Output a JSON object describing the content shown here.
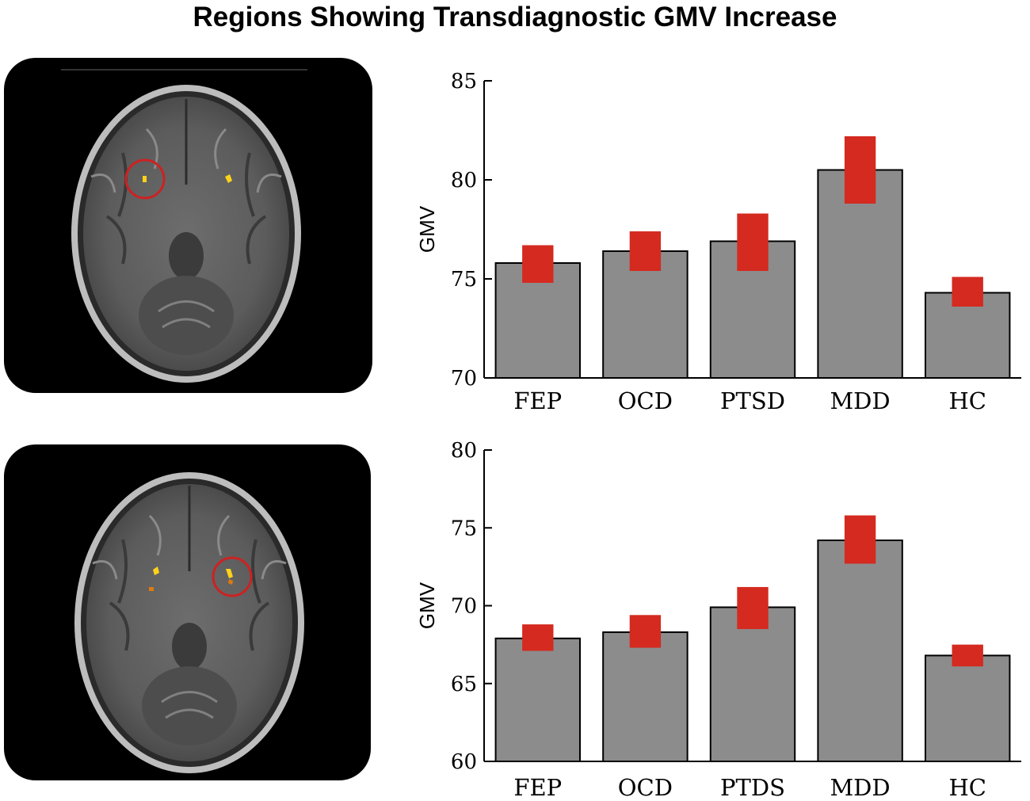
{
  "title": "Regions Showing Transdiagnostic GMV Increase",
  "colors": {
    "bar": "#8c8c8c",
    "error": "#d42a20",
    "circle": "#cc2222",
    "blob": "#ffd21a"
  },
  "panels": [
    {
      "name": "upper-brain-slice",
      "circled_side": "left"
    },
    {
      "name": "lower-brain-slice",
      "circled_side": "right"
    }
  ],
  "chart_data": [
    {
      "type": "bar",
      "title": "",
      "xlabel": "",
      "ylabel": "GMV",
      "ylim": [
        70,
        85
      ],
      "yticks": [
        70,
        75,
        80,
        85
      ],
      "categories": [
        "FEP",
        "OCD",
        "PTSD",
        "MDD",
        "HC"
      ],
      "values": [
        75.8,
        76.4,
        76.9,
        80.5,
        74.3
      ],
      "error_low": [
        74.8,
        75.4,
        75.4,
        78.8,
        73.6
      ],
      "error_high": [
        76.7,
        77.4,
        78.3,
        82.2,
        75.1
      ]
    },
    {
      "type": "bar",
      "title": "",
      "xlabel": "",
      "ylabel": "GMV",
      "ylim": [
        60,
        80
      ],
      "yticks": [
        60,
        65,
        70,
        75,
        80
      ],
      "categories": [
        "FEP",
        "OCD",
        "PTDS",
        "MDD",
        "HC"
      ],
      "values": [
        67.9,
        68.3,
        69.9,
        74.2,
        66.8
      ],
      "error_low": [
        67.1,
        67.3,
        68.5,
        72.7,
        66.1
      ],
      "error_high": [
        68.8,
        69.4,
        71.2,
        75.8,
        67.5
      ]
    }
  ]
}
